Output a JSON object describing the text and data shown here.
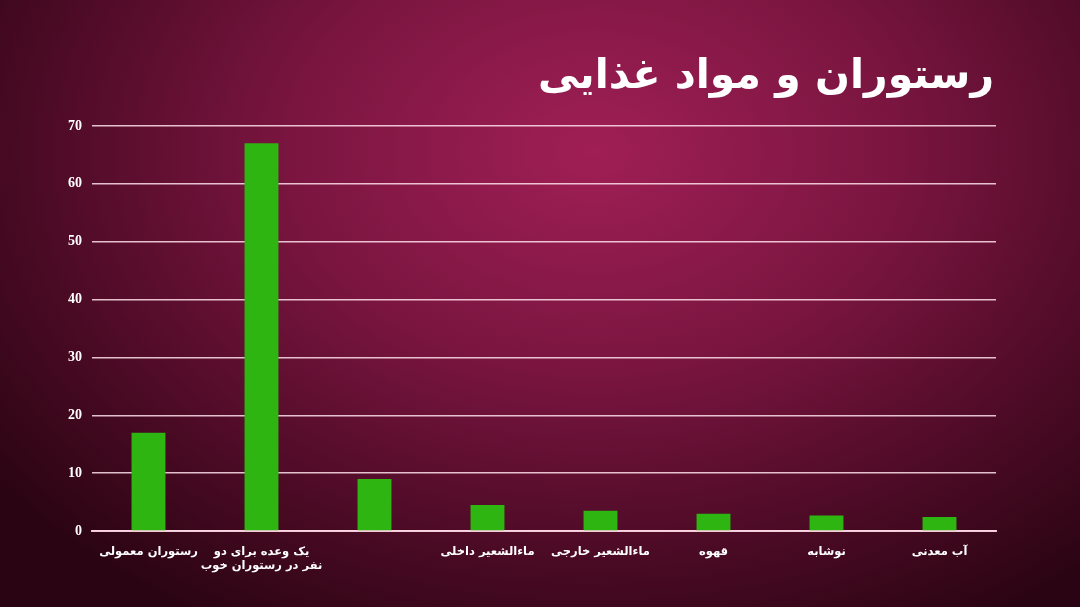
{
  "chart_data": {
    "type": "bar",
    "title": "رستوران و مواد غذایی",
    "categories": [
      "رستوران معمولی",
      "یک وعده برای دو نفر در رستوران خوب",
      null,
      "ماءالشعیر داخلی",
      "ماءالشعیر خارجی",
      "قهوه",
      "نوشابه",
      "آب معدنی"
    ],
    "values": [
      17,
      67,
      9,
      4.5,
      3.5,
      3,
      2.7,
      2.4
    ],
    "color": "#2eb512",
    "ylim": [
      0,
      70
    ],
    "yticks": [
      0,
      10,
      20,
      30,
      40,
      50,
      60,
      70
    ],
    "grid": "y"
  }
}
